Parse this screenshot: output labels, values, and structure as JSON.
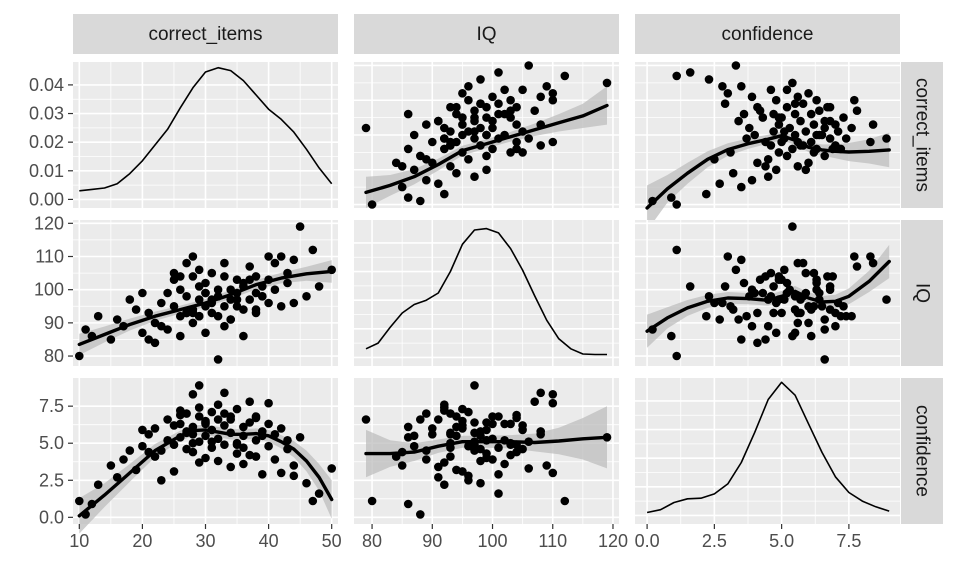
{
  "chart_data": {
    "type": "scatter",
    "variables": [
      "correct_items",
      "IQ",
      "confidence"
    ],
    "strip_labels": {
      "top": [
        "correct_items",
        "IQ",
        "confidence"
      ],
      "right": [
        "correct_items",
        "IQ",
        "confidence"
      ]
    },
    "axes": {
      "correct_items": {
        "range": [
          9,
          51
        ],
        "ticks": [
          "10",
          "20",
          "30",
          "40",
          "50"
        ],
        "tick_values": [
          10,
          20,
          30,
          40,
          50
        ]
      },
      "IQ": {
        "range": [
          77,
          121
        ],
        "ticks": [
          "80",
          "90",
          "100",
          "110",
          "120"
        ],
        "tick_values": [
          80,
          90,
          100,
          110,
          120
        ]
      },
      "confidence": {
        "range": [
          -0.45,
          9.4
        ],
        "ticks": [
          "0.0",
          "2.5",
          "5.0",
          "7.5"
        ],
        "tick_values": [
          0,
          2.5,
          5,
          7.5
        ]
      }
    },
    "density_axis": {
      "range": [
        -0.003,
        0.048
      ],
      "ticks": [
        "0.00",
        "0.01",
        "0.02",
        "0.03",
        "0.04"
      ],
      "tick_values": [
        0,
        0.01,
        0.02,
        0.03,
        0.04
      ]
    },
    "densities": {
      "correct_items": {
        "x": [
          10,
          12,
          14,
          16,
          18,
          20,
          22,
          24,
          26,
          28,
          30,
          32,
          34,
          36,
          38,
          40,
          42,
          44,
          46,
          48,
          50
        ],
        "y": [
          0.003,
          0.0035,
          0.004,
          0.0055,
          0.009,
          0.0135,
          0.019,
          0.0245,
          0.032,
          0.039,
          0.0445,
          0.046,
          0.045,
          0.0415,
          0.0365,
          0.0315,
          0.028,
          0.0235,
          0.0175,
          0.011,
          0.0055
        ]
      },
      "IQ": {
        "x": [
          79,
          81,
          83,
          85,
          87,
          89,
          91,
          93,
          95,
          97,
          99,
          101,
          103,
          105,
          107,
          109,
          111,
          113,
          115,
          117,
          119
        ],
        "y": [
          0.003,
          0.005,
          0.0105,
          0.0155,
          0.0185,
          0.02,
          0.0225,
          0.03,
          0.0395,
          0.0445,
          0.045,
          0.0435,
          0.038,
          0.0305,
          0.0215,
          0.013,
          0.0065,
          0.003,
          0.0012,
          0.001,
          0.001
        ]
      },
      "confidence": {
        "x": [
          0,
          0.5,
          1,
          1.5,
          2,
          2.5,
          3,
          3.5,
          4,
          4.5,
          5,
          5.5,
          6,
          6.5,
          7,
          7.5,
          8,
          8.5,
          9
        ],
        "y": [
          0.001,
          0.002,
          0.0045,
          0.0058,
          0.006,
          0.0075,
          0.011,
          0.0185,
          0.029,
          0.0405,
          0.0465,
          0.042,
          0.032,
          0.022,
          0.0135,
          0.008,
          0.005,
          0.003,
          0.0015
        ]
      }
    },
    "observations": {
      "correct_items": [
        10,
        11,
        12,
        13,
        15,
        16,
        17,
        18,
        19,
        20,
        21,
        22,
        22,
        23,
        24,
        24,
        25,
        25,
        26,
        26,
        26,
        27,
        27,
        27,
        28,
        28,
        28,
        28,
        29,
        29,
        29,
        29,
        30,
        30,
        30,
        30,
        31,
        31,
        31,
        32,
        32,
        32,
        32,
        33,
        33,
        33,
        34,
        34,
        34,
        35,
        35,
        35,
        36,
        36,
        36,
        37,
        37,
        38,
        38,
        38,
        39,
        39,
        40,
        40,
        41,
        41,
        42,
        43,
        43,
        44,
        45,
        46,
        47,
        48,
        50,
        20,
        23,
        26,
        29,
        31,
        34,
        37,
        40,
        44,
        21,
        25,
        28,
        33,
        36,
        39,
        42,
        27,
        30,
        35,
        38
      ],
      "IQ": [
        80,
        88,
        86,
        92,
        85,
        91,
        89,
        97,
        94,
        87,
        93,
        84,
        90,
        96,
        99,
        88,
        103,
        95,
        92,
        86,
        100,
        98,
        108,
        93,
        94,
        110,
        104,
        90,
        97,
        101,
        106,
        92,
        95,
        99,
        102,
        87,
        96,
        93,
        105,
        79,
        98,
        100,
        92,
        104,
        95,
        108,
        97,
        91,
        100,
        103,
        95,
        99,
        86,
        94,
        102,
        97,
        107,
        99,
        93,
        104,
        98,
        101,
        103,
        96,
        108,
        100,
        95,
        102,
        105,
        109,
        119,
        98,
        112,
        101,
        106,
        99,
        89,
        104,
        92,
        97,
        91,
        103,
        110,
        96,
        85,
        105,
        93,
        89,
        101,
        98,
        110,
        93,
        99,
        97,
        94
      ],
      "confidence": [
        1.1,
        0.2,
        0.9,
        2.2,
        3.5,
        2.7,
        3.9,
        4.5,
        3.2,
        4.8,
        5.6,
        4.1,
        6.0,
        2.5,
        5.2,
        6.6,
        4.9,
        3.1,
        7.2,
        5.4,
        6.3,
        4.6,
        5.8,
        7.0,
        6.1,
        8.3,
        4.4,
        5.6,
        8.9,
        6.8,
        5.1,
        7.4,
        6.5,
        4.0,
        6.3,
        5.5,
        7.1,
        4.7,
        5.9,
        6.6,
        3.8,
        5.3,
        7.6,
        4.9,
        6.2,
        8.4,
        5.7,
        3.4,
        6.8,
        5.0,
        7.3,
        4.3,
        6.1,
        5.5,
        3.6,
        6.4,
        7.8,
        5.2,
        4.1,
        6.7,
        5.8,
        2.9,
        6.3,
        4.8,
        5.6,
        3.9,
        6.0,
        5.2,
        4.6,
        3.5,
        5.4,
        2.3,
        1.1,
        1.6,
        3.3,
        5.9,
        4.5,
        6.9,
        3.7,
        5.1,
        6.6,
        4.2,
        7.7,
        2.8,
        4.4,
        6.2,
        5.0,
        7.0,
        4.7,
        5.5,
        3.0,
        5.7,
        6.4,
        4.9,
        6.8
      ]
    },
    "smooths": {
      "IQ|correct_items": {
        "x": [
          10,
          14,
          18,
          22,
          26,
          30,
          34,
          38,
          42,
          46,
          50
        ],
        "y": [
          83.5,
          86.5,
          89.5,
          92.0,
          94.0,
          96.0,
          98.5,
          101.5,
          103.5,
          104.8,
          105.5
        ],
        "se": [
          3.2,
          2.4,
          1.8,
          1.4,
          1.2,
          1.2,
          1.3,
          1.4,
          1.6,
          2.1,
          3.4
        ]
      },
      "confidence|correct_items": {
        "x": [
          10,
          14,
          18,
          22,
          26,
          28,
          30,
          32,
          34,
          36,
          38,
          40,
          42,
          44,
          46,
          48,
          50
        ],
        "y": [
          0.1,
          1.5,
          3.0,
          4.5,
          5.5,
          5.85,
          5.9,
          5.75,
          5.6,
          5.6,
          5.65,
          5.5,
          5.1,
          4.6,
          3.8,
          2.7,
          1.2
        ],
        "se": [
          1.2,
          0.8,
          0.6,
          0.45,
          0.35,
          0.35,
          0.35,
          0.35,
          0.35,
          0.35,
          0.35,
          0.4,
          0.45,
          0.55,
          0.7,
          0.9,
          1.3
        ]
      },
      "correct_items|IQ": {
        "x": [
          79,
          83,
          87,
          91,
          95,
          99,
          103,
          107,
          111,
          115,
          119
        ],
        "y": [
          13.5,
          15.5,
          18.0,
          21.5,
          25.5,
          27.5,
          29.5,
          31.5,
          33.5,
          35.5,
          38.5
        ],
        "se": [
          4.5,
          3.0,
          2.2,
          1.7,
          1.4,
          1.3,
          1.4,
          1.8,
          2.5,
          3.5,
          5.5
        ]
      },
      "confidence|IQ": {
        "x": [
          79,
          83,
          87,
          91,
          95,
          99,
          103,
          107,
          111,
          115,
          119
        ],
        "y": [
          4.3,
          4.3,
          4.4,
          4.8,
          5.1,
          5.1,
          5.1,
          5.05,
          5.15,
          5.3,
          5.4
        ],
        "se": [
          1.6,
          0.9,
          0.6,
          0.45,
          0.4,
          0.4,
          0.45,
          0.6,
          0.9,
          1.4,
          2.1
        ]
      },
      "correct_items|confidence": {
        "x": [
          0,
          0.75,
          1.5,
          2.25,
          3,
          3.75,
          4.5,
          5.0,
          5.5,
          6.0,
          6.5,
          7.0,
          7.5,
          8.25,
          9
        ],
        "y": [
          9,
          14.5,
          19,
          23,
          25.8,
          27.5,
          28.8,
          29.8,
          28.5,
          26.5,
          25.7,
          25.3,
          25.1,
          25.3,
          25.7
        ],
        "se": [
          6.5,
          4.0,
          3.0,
          2.3,
          1.8,
          1.5,
          1.3,
          1.3,
          1.3,
          1.4,
          1.6,
          2.0,
          2.6,
          3.5,
          5.0
        ]
      },
      "IQ|confidence": {
        "x": [
          0,
          0.75,
          1.5,
          2.25,
          3,
          3.75,
          4.5,
          5.0,
          5.5,
          6.0,
          6.5,
          7.0,
          7.5,
          8.25,
          9
        ],
        "y": [
          87.5,
          91.5,
          94.5,
          96.5,
          97.5,
          97.3,
          96.8,
          98,
          99.5,
          97.5,
          96.3,
          96.5,
          98,
          102.5,
          108.5
        ],
        "se": [
          5.0,
          3.2,
          2.4,
          2.0,
          1.8,
          1.7,
          1.6,
          1.6,
          1.6,
          1.7,
          1.8,
          2.0,
          2.4,
          3.2,
          5.0
        ]
      }
    },
    "colors": {
      "panel_background": "#ebebeb",
      "grid": "#ffffff",
      "strip_background": "#d9d9d9",
      "ribbon": "#bdbdbd",
      "points": "#000000",
      "text": "#1a1a1a",
      "tick_text": "#4d4d4d"
    },
    "grid": true,
    "legend": "none"
  }
}
